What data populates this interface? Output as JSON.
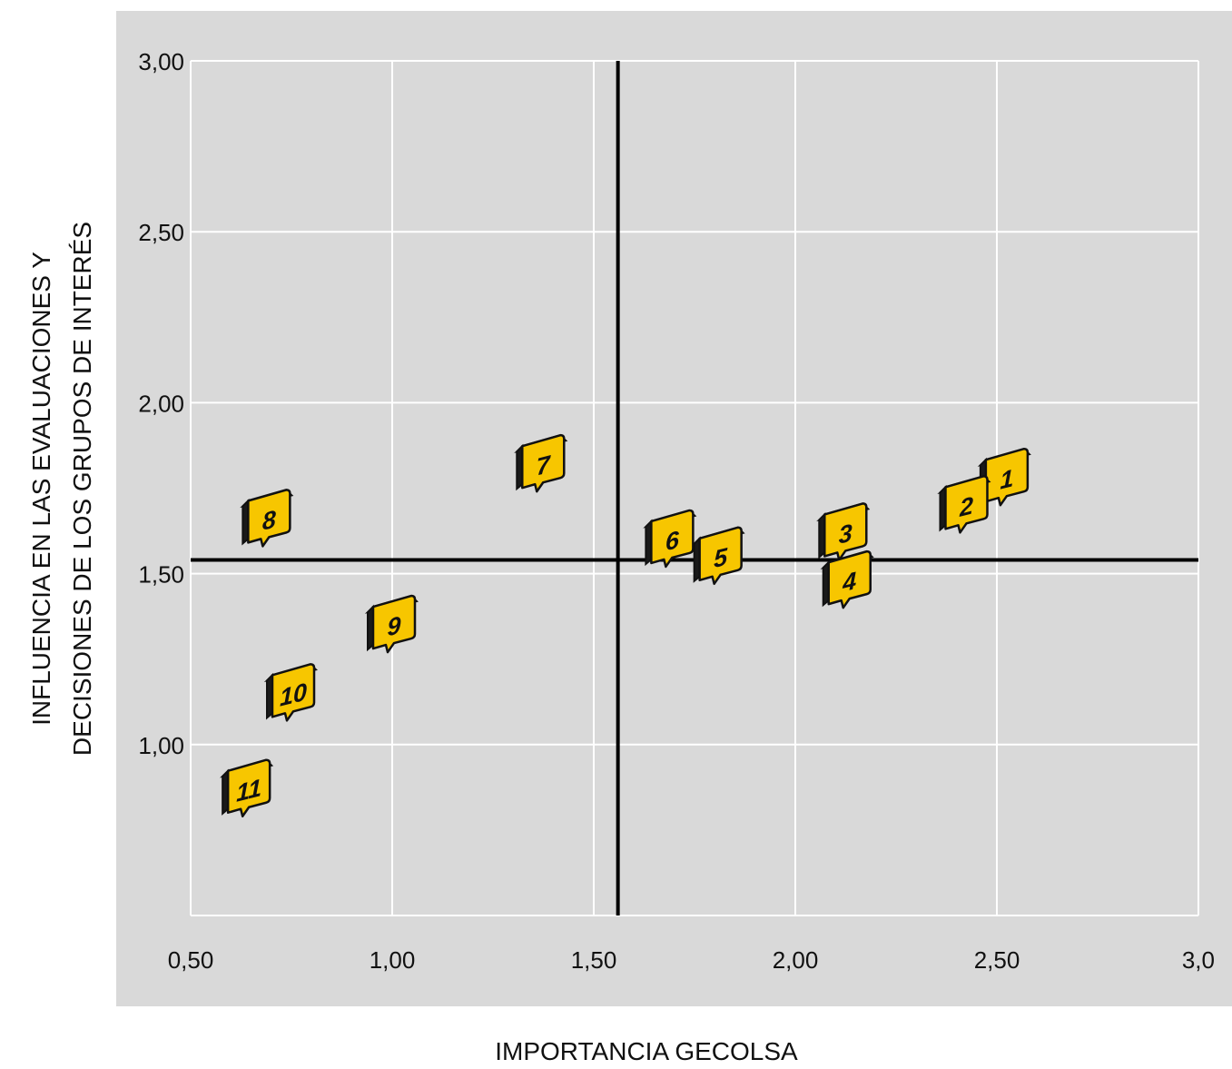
{
  "chart_data": {
    "type": "scatter",
    "title": "",
    "xlabel": "IMPORTANCIA GECOLSA",
    "ylabel_lines": [
      "INFLUENCIA EN LAS EVALUACIONES Y",
      "DECISIONES DE LOS GRUPOS DE INTERÉS"
    ],
    "xlim": [
      0.5,
      3.0
    ],
    "ylim": [
      0.5,
      3.0
    ],
    "x_ticks": [
      {
        "value": 0.5,
        "label": "0,50"
      },
      {
        "value": 1.0,
        "label": "1,00"
      },
      {
        "value": 1.5,
        "label": "1,50"
      },
      {
        "value": 2.0,
        "label": "2,00"
      },
      {
        "value": 2.5,
        "label": "2,50"
      },
      {
        "value": 3.0,
        "label": "3,0"
      }
    ],
    "y_ticks": [
      {
        "value": 1.0,
        "label": "1,00"
      },
      {
        "value": 1.5,
        "label": "1,50"
      },
      {
        "value": 2.0,
        "label": "2,00"
      },
      {
        "value": 2.5,
        "label": "2,50"
      },
      {
        "value": 3.0,
        "label": "3,00"
      }
    ],
    "grid": true,
    "reference_lines": {
      "x": 1.56,
      "y": 1.54
    },
    "points": [
      {
        "label": "1",
        "x": 2.52,
        "y": 1.78
      },
      {
        "label": "2",
        "x": 2.42,
        "y": 1.7
      },
      {
        "label": "3",
        "x": 2.12,
        "y": 1.62
      },
      {
        "label": "4",
        "x": 2.13,
        "y": 1.48
      },
      {
        "label": "5",
        "x": 1.81,
        "y": 1.55
      },
      {
        "label": "6",
        "x": 1.69,
        "y": 1.6
      },
      {
        "label": "7",
        "x": 1.37,
        "y": 1.82
      },
      {
        "label": "8",
        "x": 0.69,
        "y": 1.66
      },
      {
        "label": "9",
        "x": 1.0,
        "y": 1.35
      },
      {
        "label": "10",
        "x": 0.75,
        "y": 1.15
      },
      {
        "label": "11",
        "x": 0.64,
        "y": 0.87
      }
    ]
  },
  "colors": {
    "plot_background": "#d9d9d9",
    "gridline": "#ffffff",
    "reference_line": "#000000",
    "marker_fill": "#f7c600",
    "marker_side": "#1a1a1a",
    "marker_top": "#ffffff"
  }
}
